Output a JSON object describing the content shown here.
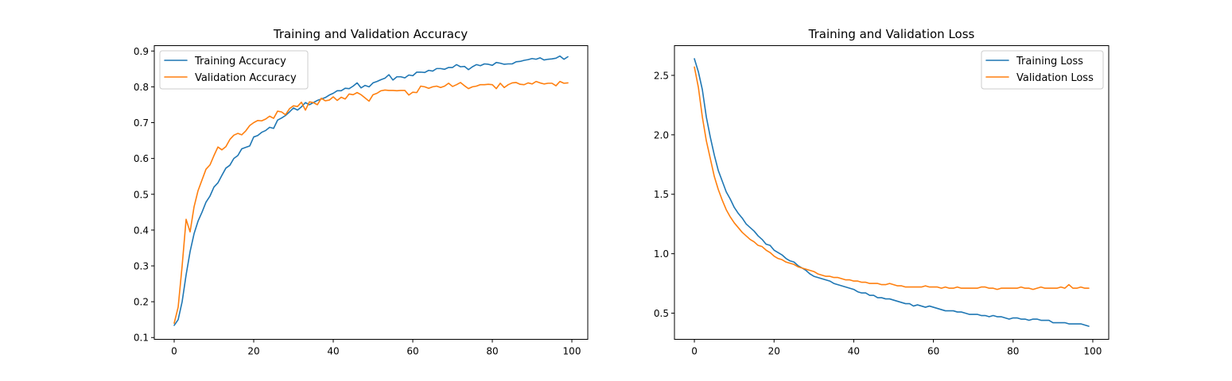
{
  "chart_data": [
    {
      "type": "line",
      "title": "Training and Validation Accuracy",
      "xlim": [
        -5,
        104
      ],
      "ylim": [
        0.095,
        0.915
      ],
      "xticks": [
        0,
        20,
        40,
        60,
        80,
        100
      ],
      "yticks": [
        0.1,
        0.2,
        0.3,
        0.4,
        0.5,
        0.6,
        0.7,
        0.8,
        0.9
      ],
      "ytick_format": 1,
      "legend_position": "upper-left",
      "series": [
        {
          "name": "Training Accuracy",
          "color": "#1f77b4",
          "values": [
            0.134,
            0.15,
            0.2,
            0.275,
            0.34,
            0.39,
            0.425,
            0.45,
            0.478,
            0.495,
            0.52,
            0.532,
            0.553,
            0.573,
            0.581,
            0.6,
            0.608,
            0.627,
            0.631,
            0.635,
            0.66,
            0.664,
            0.673,
            0.678,
            0.687,
            0.684,
            0.707,
            0.713,
            0.72,
            0.73,
            0.741,
            0.735,
            0.744,
            0.756,
            0.75,
            0.756,
            0.762,
            0.766,
            0.77,
            0.777,
            0.782,
            0.789,
            0.789,
            0.796,
            0.795,
            0.802,
            0.811,
            0.797,
            0.804,
            0.8,
            0.811,
            0.815,
            0.82,
            0.824,
            0.834,
            0.819,
            0.828,
            0.828,
            0.825,
            0.833,
            0.831,
            0.841,
            0.841,
            0.84,
            0.846,
            0.844,
            0.851,
            0.851,
            0.849,
            0.854,
            0.854,
            0.862,
            0.856,
            0.857,
            0.848,
            0.856,
            0.862,
            0.859,
            0.864,
            0.863,
            0.86,
            0.868,
            0.866,
            0.863,
            0.864,
            0.864,
            0.87,
            0.871,
            0.874,
            0.876,
            0.879,
            0.877,
            0.881,
            0.875,
            0.877,
            0.878,
            0.88,
            0.886,
            0.877,
            0.884
          ]
        },
        {
          "name": "Validation Accuracy",
          "color": "#ff7f0e",
          "values": [
            0.14,
            0.185,
            0.3,
            0.43,
            0.395,
            0.465,
            0.51,
            0.54,
            0.57,
            0.582,
            0.608,
            0.632,
            0.624,
            0.633,
            0.653,
            0.665,
            0.67,
            0.666,
            0.677,
            0.692,
            0.7,
            0.706,
            0.705,
            0.71,
            0.718,
            0.712,
            0.732,
            0.73,
            0.722,
            0.739,
            0.747,
            0.745,
            0.757,
            0.735,
            0.758,
            0.756,
            0.75,
            0.768,
            0.761,
            0.763,
            0.772,
            0.762,
            0.771,
            0.766,
            0.78,
            0.778,
            0.784,
            0.778,
            0.769,
            0.76,
            0.778,
            0.782,
            0.789,
            0.791,
            0.79,
            0.79,
            0.789,
            0.79,
            0.79,
            0.777,
            0.785,
            0.784,
            0.802,
            0.8,
            0.796,
            0.8,
            0.802,
            0.798,
            0.802,
            0.81,
            0.801,
            0.806,
            0.812,
            0.803,
            0.795,
            0.8,
            0.802,
            0.806,
            0.806,
            0.807,
            0.806,
            0.795,
            0.81,
            0.798,
            0.806,
            0.811,
            0.812,
            0.807,
            0.806,
            0.811,
            0.808,
            0.815,
            0.811,
            0.808,
            0.81,
            0.81,
            0.803,
            0.815,
            0.81,
            0.811
          ]
        }
      ]
    },
    {
      "type": "line",
      "title": "Training and Validation Loss",
      "xlim": [
        -5,
        104
      ],
      "ylim": [
        0.28,
        2.75
      ],
      "xticks": [
        0,
        20,
        40,
        60,
        80,
        100
      ],
      "yticks": [
        0.5,
        1.0,
        1.5,
        2.0,
        2.5
      ],
      "ytick_format": 1,
      "legend_position": "upper-right",
      "series": [
        {
          "name": "Training Loss",
          "color": "#1f77b4",
          "values": [
            2.64,
            2.53,
            2.38,
            2.15,
            1.98,
            1.83,
            1.7,
            1.61,
            1.52,
            1.46,
            1.39,
            1.34,
            1.3,
            1.25,
            1.22,
            1.19,
            1.15,
            1.12,
            1.08,
            1.07,
            1.03,
            1.01,
            0.99,
            0.96,
            0.94,
            0.93,
            0.9,
            0.88,
            0.86,
            0.83,
            0.81,
            0.8,
            0.79,
            0.78,
            0.77,
            0.75,
            0.74,
            0.73,
            0.72,
            0.71,
            0.7,
            0.68,
            0.67,
            0.67,
            0.65,
            0.65,
            0.63,
            0.63,
            0.62,
            0.62,
            0.61,
            0.6,
            0.59,
            0.58,
            0.58,
            0.56,
            0.57,
            0.56,
            0.55,
            0.56,
            0.55,
            0.54,
            0.53,
            0.52,
            0.52,
            0.52,
            0.51,
            0.51,
            0.5,
            0.49,
            0.49,
            0.49,
            0.48,
            0.48,
            0.47,
            0.48,
            0.47,
            0.47,
            0.46,
            0.45,
            0.46,
            0.46,
            0.45,
            0.45,
            0.44,
            0.45,
            0.45,
            0.44,
            0.44,
            0.44,
            0.42,
            0.42,
            0.42,
            0.42,
            0.41,
            0.41,
            0.41,
            0.41,
            0.4,
            0.39
          ]
        },
        {
          "name": "Validation Loss",
          "color": "#ff7f0e",
          "values": [
            2.57,
            2.4,
            2.15,
            1.95,
            1.8,
            1.65,
            1.54,
            1.45,
            1.37,
            1.31,
            1.26,
            1.22,
            1.18,
            1.15,
            1.12,
            1.1,
            1.07,
            1.06,
            1.03,
            1.01,
            0.98,
            0.96,
            0.95,
            0.93,
            0.92,
            0.91,
            0.89,
            0.88,
            0.87,
            0.86,
            0.85,
            0.83,
            0.82,
            0.81,
            0.81,
            0.8,
            0.8,
            0.79,
            0.78,
            0.78,
            0.77,
            0.77,
            0.76,
            0.76,
            0.75,
            0.75,
            0.75,
            0.74,
            0.74,
            0.75,
            0.74,
            0.73,
            0.73,
            0.72,
            0.72,
            0.72,
            0.72,
            0.72,
            0.73,
            0.72,
            0.72,
            0.72,
            0.71,
            0.72,
            0.71,
            0.71,
            0.72,
            0.71,
            0.71,
            0.71,
            0.71,
            0.71,
            0.72,
            0.72,
            0.71,
            0.71,
            0.7,
            0.71,
            0.71,
            0.71,
            0.71,
            0.71,
            0.72,
            0.71,
            0.71,
            0.7,
            0.71,
            0.72,
            0.71,
            0.71,
            0.71,
            0.71,
            0.72,
            0.71,
            0.74,
            0.71,
            0.71,
            0.72,
            0.71,
            0.71
          ]
        }
      ]
    }
  ]
}
